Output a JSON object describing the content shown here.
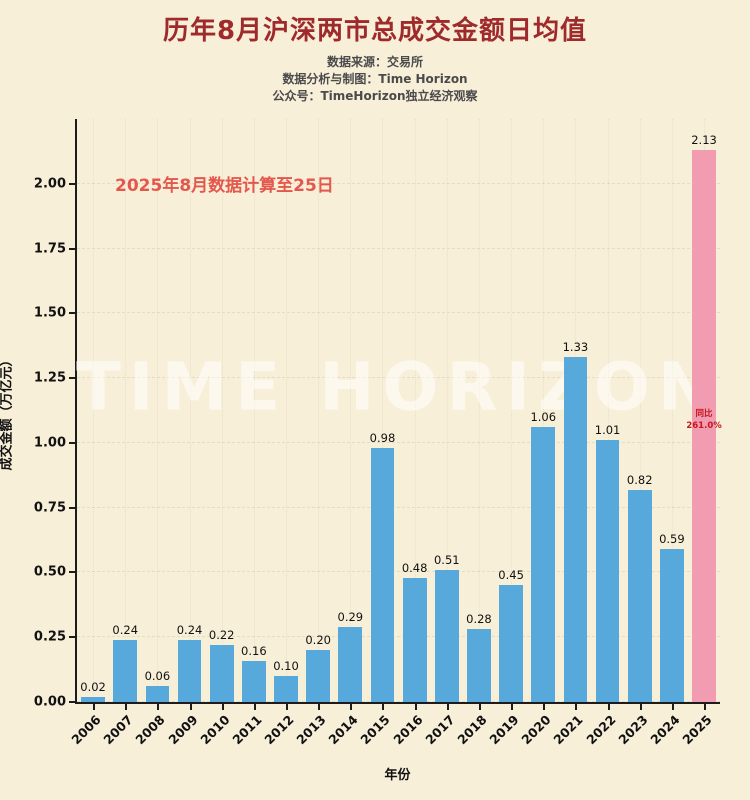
{
  "title": "历年8月沪深两市总成交金额日均值",
  "subtitle_lines": [
    "数据来源：交易所",
    "数据分析与制图：Time Horizon",
    "公众号：TimeHorizon独立经济观察"
  ],
  "plot_annotation": "2025年8月数据计算至25日",
  "watermark": "TIME HORIZON",
  "bar_annotation": {
    "line1": "同比",
    "line2": "261.0%"
  },
  "colors": {
    "background": "#f8efd9",
    "bar_blue": "#56a9da",
    "bar_pink": "#f19cb1",
    "title_red": "#9e2a2b",
    "annotation_red": "#e4574d",
    "growth_red": "#c4161c"
  },
  "chart_data": {
    "type": "bar",
    "title": "历年8月沪深两市总成交金额日均值",
    "xlabel": "年份",
    "ylabel": "成交金额（万亿元）",
    "categories": [
      "2006",
      "2007",
      "2008",
      "2009",
      "2010",
      "2011",
      "2012",
      "2013",
      "2014",
      "2015",
      "2016",
      "2017",
      "2018",
      "2019",
      "2020",
      "2021",
      "2022",
      "2023",
      "2024",
      "2025"
    ],
    "values": [
      0.02,
      0.24,
      0.06,
      0.24,
      0.22,
      0.16,
      0.1,
      0.2,
      0.29,
      0.98,
      0.48,
      0.51,
      0.28,
      0.45,
      1.06,
      1.33,
      1.01,
      0.82,
      0.59,
      2.13
    ],
    "highlight_index": 19,
    "highlight_growth_yoy_pct": 261.0,
    "ylim": [
      0,
      2.25
    ],
    "yticks": [
      0.0,
      0.25,
      0.5,
      0.75,
      1.0,
      1.25,
      1.5,
      1.75,
      2.0
    ],
    "grid": true,
    "legend": "none"
  }
}
